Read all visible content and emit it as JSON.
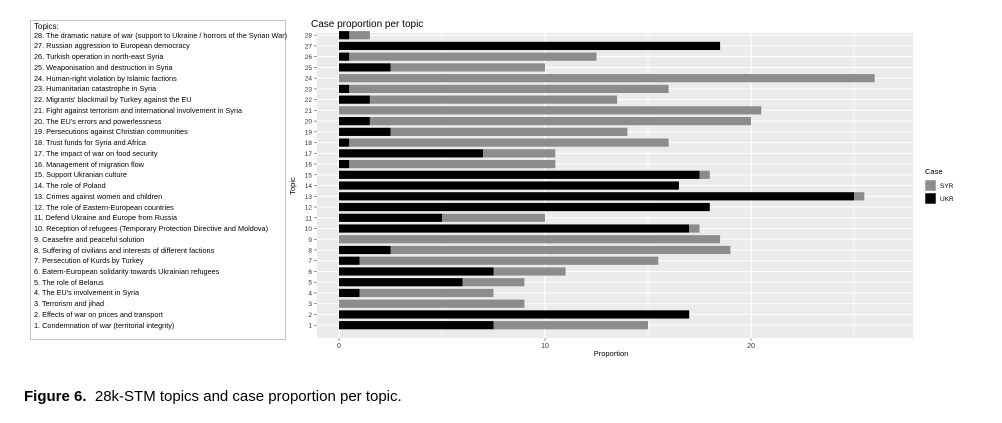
{
  "topics": {
    "heading": "Topics:",
    "items": [
      "28. The dramatic nature of war (support to Ukraine / horrors of the Syrian War)",
      "27. Russian aggression to European democracy",
      "26. Turkish operation in north-east Syria",
      "25. Weaponisation and destruction in Syria",
      "24. Human-right violation by Islamic factions",
      "23. Humanitarian catastrophe in Syria",
      "22. Migrants' blackmail by Turkey against the EU",
      "21. Fight against terrorism and international involvement in Syria",
      "20. The EU's errors and powerlessness",
      "19. Persecutions against Christian communities",
      "18. Trust funds for Syria and Africa",
      "17. The impact of war on food security",
      "16. Management of migration flow",
      "15. Support Ukranian culture",
      "14. The role of Poland",
      "13. Crimes against women and children",
      "12. The role of Eastern-European countries",
      "11. Defend Ukraine and Europe from Russia",
      "10. Reception of refugees (Temporary Protection Directive and Moldova)",
      "9. Ceasefire and peaceful solution",
      "8. Suffering of civilians and interests of different factions",
      "7. Persecution of Kurds by Turkey",
      "6. Eatern-European solidarity towards Ukrainian refugees",
      "5. The role of Belarus",
      "4. The EU's involvement in Syria",
      "3. Terrorism and jihad",
      "2. Effects of war on prices and transport",
      "1. Condemnation of war (territorial integrity)"
    ]
  },
  "chart_data": {
    "type": "bar",
    "orientation": "horizontal",
    "stacked": true,
    "title": "Case proportion per topic",
    "xlabel": "Proportion",
    "ylabel": "Topic",
    "xlim": [
      0,
      28
    ],
    "x_ticks": [
      0,
      10,
      20
    ],
    "grid": true,
    "legend_position": "right",
    "legend_title": "Case",
    "categories": [
      "28",
      "27",
      "26",
      "25",
      "24",
      "23",
      "22",
      "21",
      "20",
      "19",
      "18",
      "17",
      "16",
      "15",
      "14",
      "13",
      "12",
      "11",
      "10",
      "9",
      "8",
      "7",
      "6",
      "5",
      "4",
      "3",
      "2",
      "1"
    ],
    "series": [
      {
        "name": "UKR",
        "color": "#000000",
        "values": [
          0.5,
          18.5,
          0.5,
          2.5,
          0,
          0.5,
          1.5,
          0,
          1.5,
          2.5,
          0.5,
          7,
          0.5,
          17.5,
          16.5,
          25,
          18,
          5,
          17,
          0,
          2.5,
          1,
          7.5,
          6,
          1,
          0,
          17,
          7.5
        ]
      },
      {
        "name": "SYR",
        "color": "#8c8c8c",
        "values": [
          1,
          0,
          12,
          7.5,
          26,
          15.5,
          12,
          20.5,
          18.5,
          11.5,
          15.5,
          3.5,
          10,
          0.5,
          0,
          0.5,
          0,
          5,
          0.5,
          18.5,
          16.5,
          14.5,
          3.5,
          3,
          6.5,
          9,
          0,
          7.5
        ]
      }
    ]
  },
  "caption": {
    "label": "Figure 6.",
    "text": "28k-STM topics and case proportion per topic."
  }
}
